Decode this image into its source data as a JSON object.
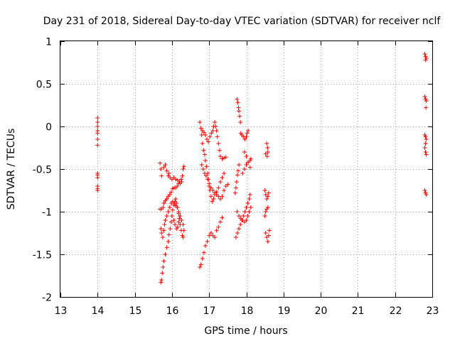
{
  "chart_data": {
    "type": "scatter",
    "title": "Day 231 of 2018, Sidereal Day-to-day VTEC variation (SDTVAR) for receiver nclf",
    "xlabel": "GPS time / hours",
    "ylabel": "SDTVAR / TECUs",
    "xlim": [
      13,
      23
    ],
    "ylim": [
      -2,
      1
    ],
    "xticks": [
      "13",
      "14",
      "15",
      "16",
      "17",
      "18",
      "19",
      "20",
      "21",
      "22",
      "23"
    ],
    "yticks": [
      "1",
      "0.5",
      "0",
      "-0.5",
      "-1",
      "-1.5",
      "-2"
    ],
    "grid": true,
    "marker": "plus",
    "color": "#ff0000",
    "points": [
      [
        14.0,
        0.1
      ],
      [
        14.0,
        0.05
      ],
      [
        14.0,
        0.0
      ],
      [
        14.0,
        -0.05
      ],
      [
        14.0,
        -0.08
      ],
      [
        14.0,
        -0.15
      ],
      [
        14.0,
        -0.22
      ],
      [
        14.0,
        -0.55
      ],
      [
        14.0,
        -0.57
      ],
      [
        14.0,
        -0.6
      ],
      [
        14.0,
        -0.7
      ],
      [
        14.0,
        -0.73
      ],
      [
        14.0,
        -0.75
      ],
      [
        15.68,
        -0.43
      ],
      [
        15.7,
        -0.5
      ],
      [
        15.72,
        -0.58
      ],
      [
        15.78,
        -0.48
      ],
      [
        15.82,
        -0.45
      ],
      [
        15.86,
        -0.52
      ],
      [
        15.9,
        -0.58
      ],
      [
        15.92,
        -0.55
      ],
      [
        15.95,
        -0.6
      ],
      [
        16.0,
        -0.62
      ],
      [
        16.05,
        -0.6
      ],
      [
        16.1,
        -0.62
      ],
      [
        16.15,
        -0.63
      ],
      [
        16.2,
        -0.65
      ],
      [
        16.25,
        -0.62
      ],
      [
        16.28,
        -0.58
      ],
      [
        16.3,
        -0.5
      ],
      [
        16.32,
        -0.47
      ],
      [
        15.68,
        -0.97
      ],
      [
        15.72,
        -0.97
      ],
      [
        15.76,
        -0.95
      ],
      [
        15.78,
        -0.9
      ],
      [
        15.82,
        -0.87
      ],
      [
        15.86,
        -0.85
      ],
      [
        15.9,
        -0.82
      ],
      [
        15.94,
        -0.8
      ],
      [
        15.98,
        -0.77
      ],
      [
        16.02,
        -0.73
      ],
      [
        16.06,
        -0.72
      ],
      [
        16.1,
        -0.72
      ],
      [
        16.14,
        -0.7
      ],
      [
        16.18,
        -0.67
      ],
      [
        16.22,
        -0.67
      ],
      [
        16.26,
        -0.65
      ],
      [
        15.7,
        -1.2
      ],
      [
        15.72,
        -1.25
      ],
      [
        15.75,
        -1.3
      ],
      [
        15.78,
        -1.22
      ],
      [
        15.8,
        -1.15
      ],
      [
        15.82,
        -1.1
      ],
      [
        15.86,
        -1.05
      ],
      [
        15.9,
        -1.0
      ],
      [
        15.94,
        -0.95
      ],
      [
        15.98,
        -0.9
      ],
      [
        16.02,
        -0.88
      ],
      [
        16.06,
        -0.9
      ],
      [
        16.1,
        -0.93
      ],
      [
        16.14,
        -0.95
      ],
      [
        16.18,
        -1.0
      ],
      [
        16.22,
        -1.05
      ],
      [
        16.26,
        -1.1
      ],
      [
        16.3,
        -1.15
      ],
      [
        16.32,
        -1.22
      ],
      [
        15.7,
        -1.83
      ],
      [
        15.72,
        -1.8
      ],
      [
        15.74,
        -1.72
      ],
      [
        15.76,
        -1.65
      ],
      [
        15.78,
        -1.58
      ],
      [
        15.82,
        -1.5
      ],
      [
        15.86,
        -1.42
      ],
      [
        15.9,
        -1.35
      ],
      [
        15.92,
        -1.27
      ],
      [
        15.95,
        -1.2
      ],
      [
        15.98,
        -1.12
      ],
      [
        16.0,
        -1.05
      ],
      [
        16.02,
        -0.98
      ],
      [
        16.05,
        -0.92
      ],
      [
        16.08,
        -0.88
      ],
      [
        16.1,
        -0.85
      ],
      [
        16.12,
        -0.9
      ],
      [
        16.15,
        -0.95
      ],
      [
        16.18,
        -1.02
      ],
      [
        16.2,
        -1.08
      ],
      [
        16.22,
        -1.15
      ],
      [
        16.25,
        -1.22
      ],
      [
        16.28,
        -1.28
      ],
      [
        16.3,
        -1.3
      ],
      [
        16.05,
        -1.1
      ],
      [
        16.08,
        -1.15
      ],
      [
        16.12,
        -1.2
      ],
      [
        16.15,
        -1.18
      ],
      [
        16.18,
        -1.12
      ],
      [
        16.22,
        -1.05
      ],
      [
        16.75,
        -1.65
      ],
      [
        16.78,
        -1.62
      ],
      [
        16.82,
        -1.55
      ],
      [
        16.86,
        -1.48
      ],
      [
        16.9,
        -1.4
      ],
      [
        16.95,
        -1.35
      ],
      [
        17.0,
        -1.28
      ],
      [
        17.05,
        -1.25
      ],
      [
        17.1,
        -1.28
      ],
      [
        17.15,
        -1.3
      ],
      [
        17.2,
        -1.22
      ],
      [
        17.25,
        -1.18
      ],
      [
        17.3,
        -1.12
      ],
      [
        17.35,
        -1.07
      ],
      [
        16.75,
        0.05
      ],
      [
        16.78,
        -0.02
      ],
      [
        16.8,
        -0.1
      ],
      [
        16.82,
        -0.2
      ],
      [
        16.85,
        -0.28
      ],
      [
        16.88,
        -0.33
      ],
      [
        16.9,
        -0.4
      ],
      [
        16.93,
        -0.47
      ],
      [
        16.96,
        -0.55
      ],
      [
        16.98,
        -0.62
      ],
      [
        17.0,
        -0.7
      ],
      [
        17.02,
        -0.75
      ],
      [
        17.05,
        -0.82
      ],
      [
        17.08,
        -0.88
      ],
      [
        17.12,
        -0.85
      ],
      [
        17.15,
        -0.8
      ],
      [
        17.2,
        -0.77
      ],
      [
        17.25,
        -0.72
      ],
      [
        17.3,
        -0.65
      ],
      [
        17.35,
        -0.6
      ],
      [
        17.4,
        -0.55
      ],
      [
        16.82,
        -0.05
      ],
      [
        16.86,
        -0.07
      ],
      [
        16.9,
        -0.1
      ],
      [
        16.94,
        -0.15
      ],
      [
        16.98,
        -0.18
      ],
      [
        17.02,
        -0.12
      ],
      [
        17.06,
        -0.08
      ],
      [
        17.1,
        -0.05
      ],
      [
        17.12,
        0.0
      ],
      [
        17.15,
        0.05
      ],
      [
        17.18,
        0.0
      ],
      [
        17.2,
        -0.05
      ],
      [
        17.22,
        -0.12
      ],
      [
        17.25,
        -0.2
      ],
      [
        17.28,
        -0.28
      ],
      [
        17.3,
        -0.35
      ],
      [
        17.35,
        -0.38
      ],
      [
        17.4,
        -0.37
      ],
      [
        17.45,
        -0.36
      ],
      [
        16.8,
        -0.45
      ],
      [
        16.84,
        -0.5
      ],
      [
        16.88,
        -0.55
      ],
      [
        16.92,
        -0.58
      ],
      [
        16.96,
        -0.62
      ],
      [
        17.0,
        -0.67
      ],
      [
        17.05,
        -0.72
      ],
      [
        17.1,
        -0.75
      ],
      [
        17.15,
        -0.78
      ],
      [
        17.2,
        -0.8
      ],
      [
        17.25,
        -0.82
      ],
      [
        17.3,
        -0.85
      ],
      [
        17.35,
        -0.82
      ],
      [
        17.4,
        -0.75
      ],
      [
        17.45,
        -0.7
      ],
      [
        17.5,
        -0.68
      ],
      [
        17.75,
        0.32
      ],
      [
        17.77,
        0.28
      ],
      [
        17.79,
        0.22
      ],
      [
        17.8,
        0.18
      ],
      [
        17.82,
        0.12
      ],
      [
        17.84,
        0.05
      ],
      [
        17.8,
        -0.45
      ],
      [
        17.78,
        -0.52
      ],
      [
        17.76,
        -0.57
      ],
      [
        17.74,
        -0.65
      ],
      [
        17.72,
        -0.72
      ],
      [
        17.7,
        -0.78
      ],
      [
        17.72,
        -1.3
      ],
      [
        17.76,
        -1.25
      ],
      [
        17.8,
        -1.2
      ],
      [
        17.84,
        -1.15
      ],
      [
        17.88,
        -1.1
      ],
      [
        17.92,
        -1.05
      ],
      [
        17.96,
        -1.0
      ],
      [
        18.0,
        -0.95
      ],
      [
        18.04,
        -0.9
      ],
      [
        18.08,
        -0.85
      ],
      [
        18.1,
        -0.8
      ],
      [
        17.75,
        -1.0
      ],
      [
        17.8,
        -1.05
      ],
      [
        17.85,
        -1.08
      ],
      [
        17.9,
        -1.1
      ],
      [
        17.95,
        -1.12
      ],
      [
        18.0,
        -1.1
      ],
      [
        18.04,
        -1.05
      ],
      [
        18.08,
        -1.0
      ],
      [
        18.12,
        -0.95
      ],
      [
        17.85,
        -0.08
      ],
      [
        17.88,
        -0.1
      ],
      [
        17.92,
        -0.12
      ],
      [
        17.96,
        -0.15
      ],
      [
        18.0,
        -0.12
      ],
      [
        18.02,
        -0.08
      ],
      [
        18.05,
        -0.05
      ],
      [
        17.9,
        -0.55
      ],
      [
        17.95,
        -0.5
      ],
      [
        18.0,
        -0.45
      ],
      [
        18.05,
        -0.42
      ],
      [
        18.1,
        -0.4
      ],
      [
        18.12,
        -0.38
      ],
      [
        17.95,
        -0.3
      ],
      [
        18.0,
        -0.35
      ],
      [
        18.05,
        -0.42
      ],
      [
        18.1,
        -0.48
      ],
      [
        18.55,
        -0.2
      ],
      [
        18.57,
        -0.25
      ],
      [
        18.58,
        -0.3
      ],
      [
        18.56,
        -0.35
      ],
      [
        18.52,
        -0.32
      ],
      [
        18.5,
        -0.75
      ],
      [
        18.52,
        -0.8
      ],
      [
        18.55,
        -0.85
      ],
      [
        18.58,
        -0.82
      ],
      [
        18.6,
        -0.78
      ],
      [
        18.5,
        -1.05
      ],
      [
        18.52,
        -1.0
      ],
      [
        18.55,
        -0.97
      ],
      [
        18.58,
        -0.95
      ],
      [
        18.52,
        -1.25
      ],
      [
        18.55,
        -1.3
      ],
      [
        18.58,
        -1.35
      ],
      [
        18.6,
        -1.28
      ],
      [
        18.62,
        -1.22
      ],
      [
        22.8,
        0.85
      ],
      [
        22.82,
        0.82
      ],
      [
        22.84,
        0.8
      ],
      [
        22.82,
        0.78
      ],
      [
        22.8,
        0.35
      ],
      [
        22.82,
        0.32
      ],
      [
        22.84,
        0.3
      ],
      [
        22.83,
        0.22
      ],
      [
        22.8,
        -0.1
      ],
      [
        22.82,
        -0.12
      ],
      [
        22.84,
        -0.15
      ],
      [
        22.82,
        -0.2
      ],
      [
        22.8,
        -0.25
      ],
      [
        22.82,
        -0.3
      ],
      [
        22.84,
        -0.33
      ],
      [
        22.8,
        -0.75
      ],
      [
        22.82,
        -0.78
      ],
      [
        22.84,
        -0.8
      ]
    ]
  }
}
